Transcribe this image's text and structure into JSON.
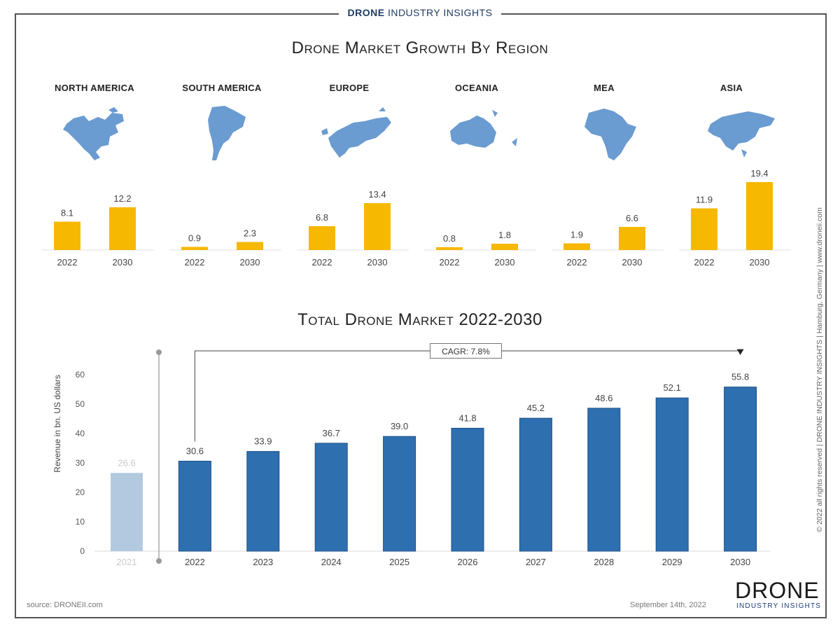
{
  "brand": {
    "strong": "DRONE",
    "rest": "INDUSTRY INSIGHTS"
  },
  "title_regions": "Drone Market Growth By Region",
  "title_total": "Total Drone Market 2022-2030",
  "colors": {
    "region_bar": "#f6b800",
    "total_bar": "#2e6fb0",
    "past_bar": "#b3c9df",
    "map": "#6a9bd1"
  },
  "side_text": "© 2022 all rights reserved  |  DRONE INDUSTRY INSIGHTS  |  Hamburg, Germany  |  www.droneii.com",
  "source": "source: DRONEII.com",
  "date": "September 14th, 2022",
  "logo": {
    "big": "DRONE",
    "small": "INDUSTRY INSIGHTS"
  },
  "cagr_label": "CAGR: 7.8%",
  "chart_data": [
    {
      "type": "bar",
      "title": "NORTH AMERICA",
      "categories": [
        "2022",
        "2030"
      ],
      "values": [
        8.1,
        12.2
      ],
      "icon": "north-america-map-icon"
    },
    {
      "type": "bar",
      "title": "SOUTH AMERICA",
      "categories": [
        "2022",
        "2030"
      ],
      "values": [
        0.9,
        2.3
      ],
      "icon": "south-america-map-icon"
    },
    {
      "type": "bar",
      "title": "EUROPE",
      "categories": [
        "2022",
        "2030"
      ],
      "values": [
        6.8,
        13.4
      ],
      "icon": "europe-map-icon"
    },
    {
      "type": "bar",
      "title": "OCEANIA",
      "categories": [
        "2022",
        "2030"
      ],
      "values": [
        0.8,
        1.8
      ],
      "icon": "oceania-map-icon"
    },
    {
      "type": "bar",
      "title": "MEA",
      "categories": [
        "2022",
        "2030"
      ],
      "values": [
        1.9,
        6.6
      ],
      "icon": "africa-map-icon"
    },
    {
      "type": "bar",
      "title": "ASIA",
      "categories": [
        "2022",
        "2030"
      ],
      "values": [
        11.9,
        19.4
      ],
      "icon": "asia-map-icon"
    },
    {
      "type": "bar",
      "title": "Total Drone Market 2022-2030",
      "categories": [
        "2021",
        "2022",
        "2023",
        "2024",
        "2025",
        "2026",
        "2027",
        "2028",
        "2029",
        "2030"
      ],
      "values": [
        26.6,
        30.6,
        33.9,
        36.7,
        39.0,
        41.8,
        45.2,
        48.6,
        52.1,
        55.8
      ],
      "value_labels": [
        "26.6",
        "30.6",
        "33.9",
        "36.7",
        "39.0",
        "41.8",
        "45.2",
        "48.6",
        "52.1",
        "55.8"
      ],
      "ylabel": "Revenue in bn. US dollars",
      "yticks": [
        0,
        10,
        20,
        30,
        40,
        50,
        60
      ],
      "ylim": [
        0,
        60
      ],
      "grid": false
    }
  ]
}
